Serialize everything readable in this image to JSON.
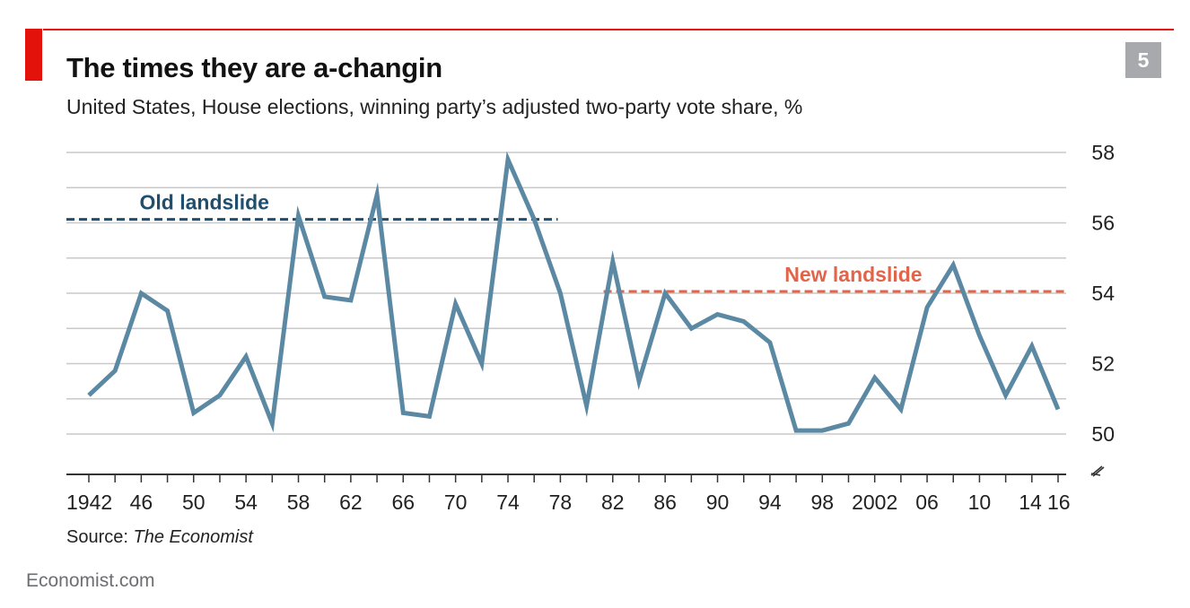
{
  "header": {
    "title": "The times they are a-changin",
    "subtitle": "United States, House elections, winning party’s adjusted two-party vote share, %",
    "badge": "5"
  },
  "footer": {
    "source_label": "Source:",
    "source_publication": "The Economist",
    "brand": "Economist.com"
  },
  "colors": {
    "accent_red": "#e3120b",
    "series_line": "#5b89a4",
    "old_landslide": "#1f4e6e",
    "new_landslide": "#e0654a",
    "grid": "#c9c9c9",
    "badge_gray": "#a7a9ac"
  },
  "chart_data": {
    "type": "line",
    "title": "The times they are a-changin",
    "subtitle": "United States, House elections, winning party’s adjusted two-party vote share, %",
    "xlabel": "",
    "ylabel": "",
    "ylim": [
      50,
      58
    ],
    "xlim": [
      1942,
      2016
    ],
    "y_axis_side": "right",
    "y_axis_broken": true,
    "y_ticks": [
      50,
      52,
      54,
      56,
      58
    ],
    "y_tick_labels": [
      "50",
      "52",
      "54",
      "56",
      "58"
    ],
    "x_tick_values": [
      1942,
      1946,
      1950,
      1954,
      1958,
      1962,
      1966,
      1970,
      1974,
      1978,
      1982,
      1986,
      1990,
      1994,
      1998,
      2002,
      2006,
      2010,
      2014,
      2016
    ],
    "x_tick_labels": [
      "1942",
      "46",
      "50",
      "54",
      "58",
      "62",
      "66",
      "70",
      "74",
      "78",
      "82",
      "86",
      "90",
      "94",
      "98",
      "2002",
      "06",
      "10",
      "14",
      "16"
    ],
    "grid": true,
    "series": [
      {
        "x": [
          1942,
          1944,
          1946,
          1948,
          1950,
          1952,
          1954,
          1956,
          1958,
          1960,
          1962,
          1964,
          1966,
          1968,
          1970,
          1972,
          1974,
          1976,
          1978,
          1980,
          1982,
          1984,
          1986,
          1988,
          1990,
          1992,
          1994,
          1996,
          1998,
          2000,
          2002,
          2004,
          2006,
          2008,
          2010,
          2012,
          2014,
          2016
        ],
        "values": [
          51.1,
          51.8,
          54.0,
          53.5,
          50.6,
          51.1,
          52.2,
          50.3,
          56.2,
          53.9,
          53.8,
          56.8,
          50.6,
          50.5,
          53.7,
          52.0,
          57.8,
          56.1,
          54.0,
          50.8,
          54.9,
          51.5,
          54.0,
          53.0,
          53.4,
          53.2,
          52.6,
          50.1,
          50.1,
          50.3,
          51.6,
          50.7,
          53.6,
          54.8,
          52.8,
          51.1,
          52.5,
          50.7
        ]
      }
    ],
    "annotations": [
      {
        "label": "Old landslide",
        "y": 56.1,
        "x_start": 1942,
        "x_end": 1977.8,
        "style": "dashed"
      },
      {
        "label": "New landslide",
        "y": 54.05,
        "x_start": 1981.3,
        "x_end": 2016.7,
        "style": "dashed"
      }
    ]
  }
}
